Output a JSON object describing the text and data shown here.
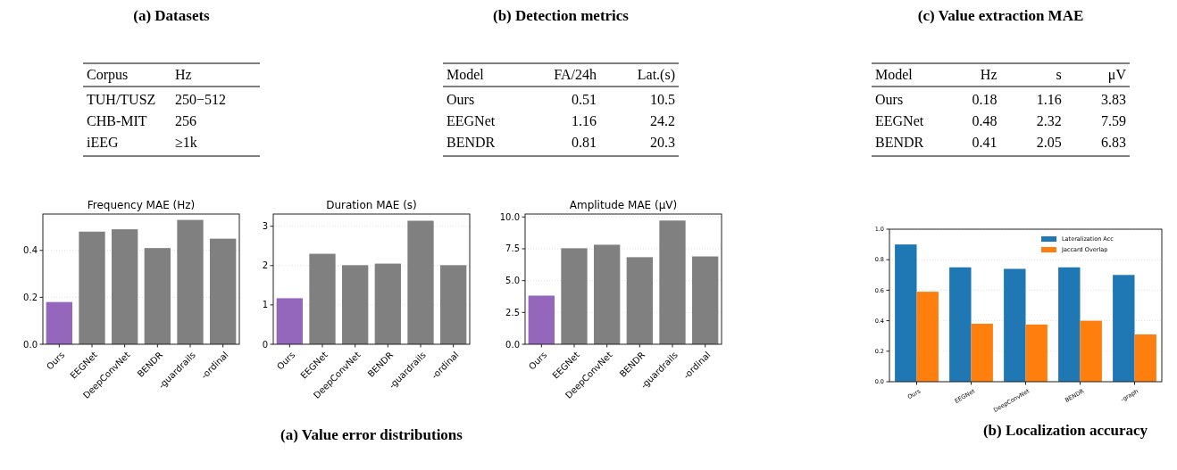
{
  "chart_data": [
    {
      "type": "other",
      "title": "(a) Datasets",
      "categories": [
        "Corpus",
        "Hz"
      ],
      "annotations": [
        "TUH/TUSZ",
        "250−512",
        "CHB-MIT",
        "256",
        "iEEG",
        "≥1k"
      ]
    },
    {
      "type": "other",
      "title": "(b) Detection metrics",
      "categories": [
        "Model",
        "FA/24h",
        "Lat.(s)"
      ],
      "annotations": [
        "Ours",
        "0.51",
        "10.5",
        "EEGNet",
        "1.16",
        "24.2",
        "BENDR",
        "0.81",
        "20.3"
      ]
    },
    {
      "type": "other",
      "title": "(c) Value extraction MAE",
      "categories": [
        "Model",
        "Hz",
        "s",
        "μV"
      ],
      "annotations": [
        "Ours",
        "0.18",
        "1.16",
        "3.83",
        "EEGNet",
        "0.48",
        "2.32",
        "7.59",
        "BENDR",
        "0.41",
        "2.05",
        "6.83"
      ]
    },
    {
      "type": "bar",
      "title": "Frequency MAE (Hz)",
      "categories": [
        "Ours",
        "EEGNet",
        "DeepConvNet",
        "BENDR",
        "-guardrails",
        "-ordinal"
      ],
      "values": [
        0.18,
        0.48,
        0.49,
        0.41,
        0.53,
        0.45
      ],
      "colors": [
        "#9467bd",
        "#808080",
        "#808080",
        "#808080",
        "#808080",
        "#808080"
      ],
      "ylim": [
        0,
        0.555
      ],
      "yticks": [
        {
          "value": 0,
          "label": "0.0"
        },
        {
          "value": 0.2,
          "label": "0.2"
        },
        {
          "value": 0.4,
          "label": "0.4"
        }
      ],
      "grid": "y"
    },
    {
      "type": "bar",
      "title": "Duration MAE (s)",
      "categories": [
        "Ours",
        "EEGNet",
        "DeepConvNet",
        "BENDR",
        "-guardrails",
        "-ordinal"
      ],
      "values": [
        1.17,
        2.3,
        2.01,
        2.05,
        3.14,
        2.01
      ],
      "colors": [
        "#9467bd",
        "#808080",
        "#808080",
        "#808080",
        "#808080",
        "#808080"
      ],
      "ylim": [
        0,
        3.31
      ],
      "yticks": [
        0,
        1,
        2,
        3
      ],
      "grid": "y",
      "annotations": [
        "(a) Value error distributions"
      ]
    },
    {
      "type": "bar",
      "title": "Amplitude MAE (μV)",
      "categories": [
        "Ours",
        "EEGNet",
        "DeepConvNet",
        "BENDR",
        "-guardrails",
        "-ordinal"
      ],
      "values": [
        3.82,
        7.54,
        7.82,
        6.84,
        9.72,
        6.9
      ],
      "colors": [
        "#9467bd",
        "#808080",
        "#808080",
        "#808080",
        "#808080",
        "#808080"
      ],
      "ylim": [
        0,
        10.23
      ],
      "yticks": [
        {
          "value": 0,
          "label": "0.0"
        },
        {
          "value": 2.5,
          "label": "2.5"
        },
        {
          "value": 5,
          "label": "5.0"
        },
        {
          "value": 7.5,
          "label": "7.5"
        },
        {
          "value": 10,
          "label": "10.0"
        }
      ],
      "grid": "y"
    },
    {
      "type": "bar",
      "categories": [
        "Ours",
        "EEGNet",
        "DeepConvNet",
        "BENDR",
        "-graph"
      ],
      "series": [
        {
          "name": "Lateralization Acc",
          "color": "#1f77b4",
          "values": [
            0.9,
            0.75,
            0.74,
            0.75,
            0.7
          ]
        },
        {
          "name": "Jaccard Overlap",
          "color": "#ff7f0e",
          "values": [
            0.59,
            0.38,
            0.375,
            0.4,
            0.31
          ]
        }
      ],
      "ylim": [
        0,
        1
      ],
      "yticks": [
        {
          "value": 0,
          "label": "0.0"
        },
        {
          "value": 0.2,
          "label": "0.2"
        },
        {
          "value": 0.4,
          "label": "0.4"
        },
        {
          "value": 0.6,
          "label": "0.6"
        },
        {
          "value": 0.8,
          "label": "0.8"
        },
        {
          "value": 1,
          "label": "1.0"
        }
      ],
      "grid": "y",
      "legend": "top right",
      "annotations": [
        "(b) Localization accuracy"
      ]
    }
  ]
}
